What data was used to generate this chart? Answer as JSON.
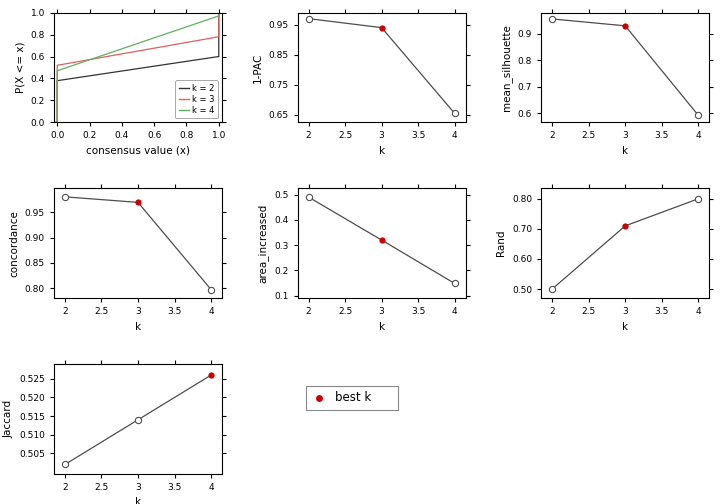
{
  "pac": {
    "k": [
      2,
      3,
      4
    ],
    "values": [
      0.97,
      0.94,
      0.655
    ],
    "best_k_idx": 1
  },
  "mean_silhouette": {
    "k": [
      2,
      3,
      4
    ],
    "values": [
      0.956,
      0.93,
      0.592
    ],
    "best_k_idx": 1
  },
  "concordance": {
    "k": [
      2,
      3,
      4
    ],
    "values": [
      0.981,
      0.97,
      0.797
    ],
    "best_k_idx": 1
  },
  "area_increased": {
    "k": [
      2,
      3,
      4
    ],
    "values": [
      0.49,
      0.32,
      0.148
    ],
    "best_k_idx": 1
  },
  "rand": {
    "k": [
      2,
      3,
      4
    ],
    "values": [
      0.5,
      0.71,
      0.8
    ],
    "best_k_idx": 1
  },
  "jaccard": {
    "k": [
      2,
      3,
      4
    ],
    "values": [
      0.502,
      0.514,
      0.526
    ],
    "best_k_idx": 2
  },
  "best_k_color": "#CC0000",
  "line_color": "#4d4d4d",
  "ecdf_colors": [
    "#333333",
    "#e06060",
    "#60b060"
  ],
  "legend_labels": [
    "k = 2",
    "k = 3",
    "k = 4"
  ]
}
